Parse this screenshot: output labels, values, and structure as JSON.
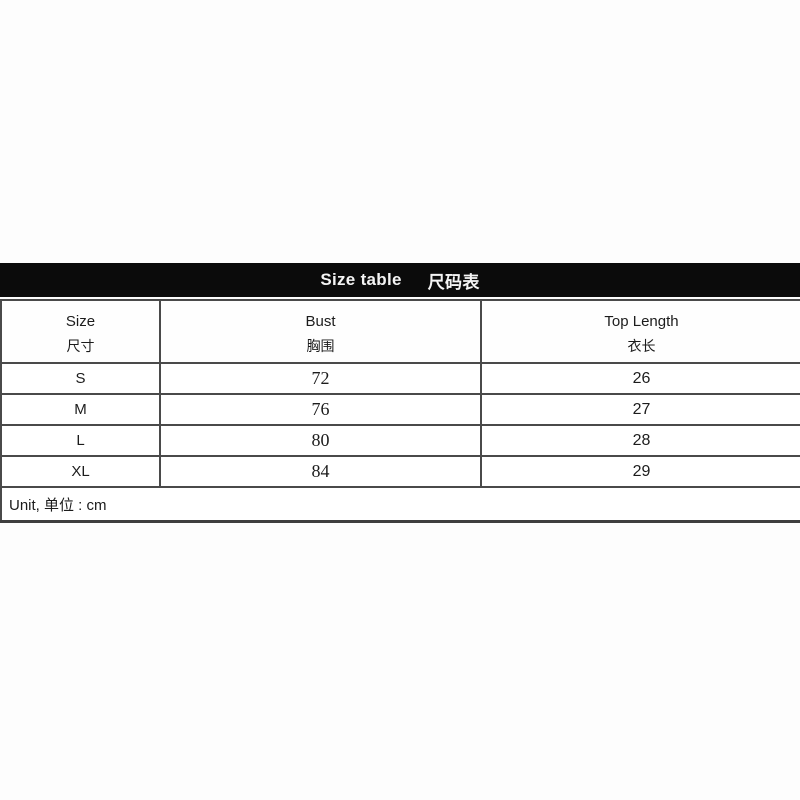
{
  "title": {
    "en": "Size table",
    "zh": "尺码表"
  },
  "table": {
    "columns": [
      {
        "en": "Size",
        "zh": "尺寸"
      },
      {
        "en": "Bust",
        "zh": "胸围"
      },
      {
        "en": "Top Length",
        "zh": "衣长"
      }
    ],
    "rows": [
      {
        "size": "S",
        "bust": "72",
        "top_length": "26"
      },
      {
        "size": "M",
        "bust": "76",
        "top_length": "27"
      },
      {
        "size": "L",
        "bust": "80",
        "top_length": "28"
      },
      {
        "size": "XL",
        "bust": "84",
        "top_length": "29"
      }
    ],
    "footer": "Unit, 单位 : cm"
  },
  "chart_data": {
    "type": "table",
    "title": "Size table 尺码表",
    "columns": [
      "Size 尺寸",
      "Bust 胸围",
      "Top Length 衣长"
    ],
    "rows": [
      [
        "S",
        72,
        26
      ],
      [
        "M",
        76,
        27
      ],
      [
        "L",
        80,
        28
      ],
      [
        "XL",
        84,
        29
      ]
    ],
    "unit": "cm"
  },
  "colors": {
    "title_bar_bg": "#0b0b0b",
    "title_text": "#f4f4f4",
    "border": "#4a4a4a",
    "text": "#1c1c1c",
    "background": "#ffffff"
  }
}
